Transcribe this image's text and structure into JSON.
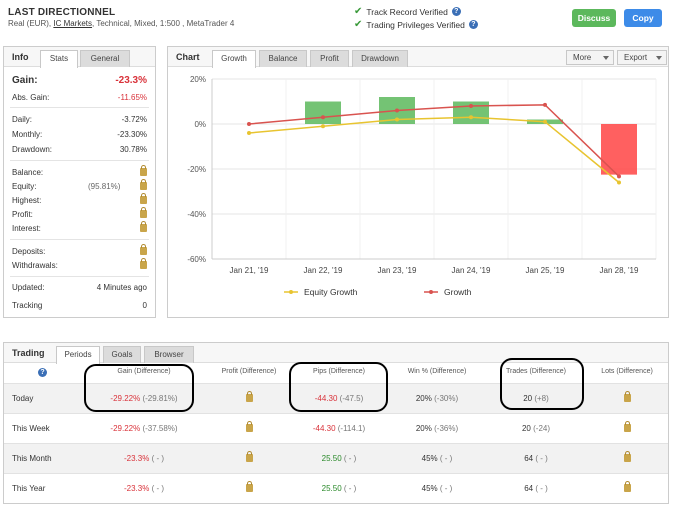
{
  "header": {
    "title": "LAST DIRECTIONNEL",
    "sub_prefix": "Real (EUR),",
    "broker": "IC Markets",
    "sub_suffix": ", Technical, Mixed, 1:500 , MetaTrader 4",
    "verify_track": "Track Record Verified",
    "verify_trading": "Trading Privileges Verified",
    "discuss_label": "Discuss",
    "copy_label": "Copy",
    "qmark": "?"
  },
  "info": {
    "title": "Info",
    "tabs": [
      "Stats",
      "General"
    ],
    "gain_label": "Gain:",
    "gain_value": "-23.3%",
    "abs_gain_label": "Abs. Gain:",
    "abs_gain_value": "-11.65%",
    "daily_label": "Daily:",
    "daily_value": "-3.72%",
    "monthly_label": "Monthly:",
    "monthly_value": "-23.30%",
    "drawdown_label": "Drawdown:",
    "drawdown_value": "30.78%",
    "balance_label": "Balance:",
    "equity_label": "Equity:",
    "equity_pct": "(95.81%)",
    "highest_label": "Highest:",
    "profit_label": "Profit:",
    "interest_label": "Interest:",
    "deposits_label": "Deposits:",
    "withdrawals_label": "Withdrawals:",
    "updated_label": "Updated:",
    "updated_value": "4 Minutes ago",
    "tracking_label": "Tracking",
    "tracking_value": "0"
  },
  "chart": {
    "title": "Chart",
    "tabs": [
      "Growth",
      "Balance",
      "Profit",
      "Drawdown"
    ],
    "more_label": "More",
    "export_label": "Export",
    "legend_equity": "Equity Growth",
    "legend_growth": "Growth",
    "colors": {
      "equity": "#e8c430",
      "growth": "#d9534f",
      "bar_pos": "#5cb85c",
      "bar_neg": "#ff4444"
    }
  },
  "chart_data": {
    "type": "bar",
    "categories": [
      "Jan 21, '19",
      "Jan 22, '19",
      "Jan 23, '19",
      "Jan 24, '19",
      "Jan 25, '19",
      "Jan 28, '19"
    ],
    "ylim": [
      -60,
      20
    ],
    "yticks": [
      20,
      0,
      -20,
      -40,
      -60
    ],
    "ytick_labels": [
      "20%",
      "0%",
      "-20%",
      "-40%",
      "-60%"
    ],
    "bar_values": [
      0,
      10,
      12,
      10,
      2,
      -22.5
    ],
    "series": [
      {
        "name": "Equity Growth",
        "values": [
          -4,
          -1,
          2,
          3,
          1,
          -26
        ]
      },
      {
        "name": "Growth",
        "values": [
          0,
          3,
          6,
          8,
          8.5,
          -23.3
        ]
      }
    ],
    "legend": "bottom"
  },
  "trading": {
    "title": "Trading",
    "tabs": [
      "Periods",
      "Goals",
      "Browser"
    ],
    "headers": {
      "qmark": "?",
      "gain": "Gain (Difference)",
      "profit": "Profit (Difference)",
      "pips": "Pips (Difference)",
      "win": "Win % (Difference)",
      "trades": "Trades (Difference)",
      "lots": "Lots (Difference)"
    },
    "rows": [
      {
        "label": "Today",
        "gain": "-29.22%",
        "gain_diff": "(-29.81%)",
        "pips": "-44.30",
        "pips_diff": "(-47.5)",
        "win": "20%",
        "win_diff": "(-30%)",
        "trades": "20",
        "trades_diff": "(+8)"
      },
      {
        "label": "This Week",
        "gain": "-29.22%",
        "gain_diff": "(-37.58%)",
        "pips": "-44.30",
        "pips_diff": "(-114.1)",
        "win": "20%",
        "win_diff": "(-36%)",
        "trades": "20",
        "trades_diff": "(-24)"
      },
      {
        "label": "This Month",
        "gain": "-23.3%",
        "gain_diff": "( - )",
        "pips": "25.50",
        "pips_diff": "( - )",
        "win": "45%",
        "win_diff": "( - )",
        "trades": "64",
        "trades_diff": "( - )"
      },
      {
        "label": "This Year",
        "gain": "-23.3%",
        "gain_diff": "( - )",
        "pips": "25.50",
        "pips_diff": "( - )",
        "win": "45%",
        "win_diff": "( - )",
        "trades": "64",
        "trades_diff": "( - )"
      }
    ]
  }
}
